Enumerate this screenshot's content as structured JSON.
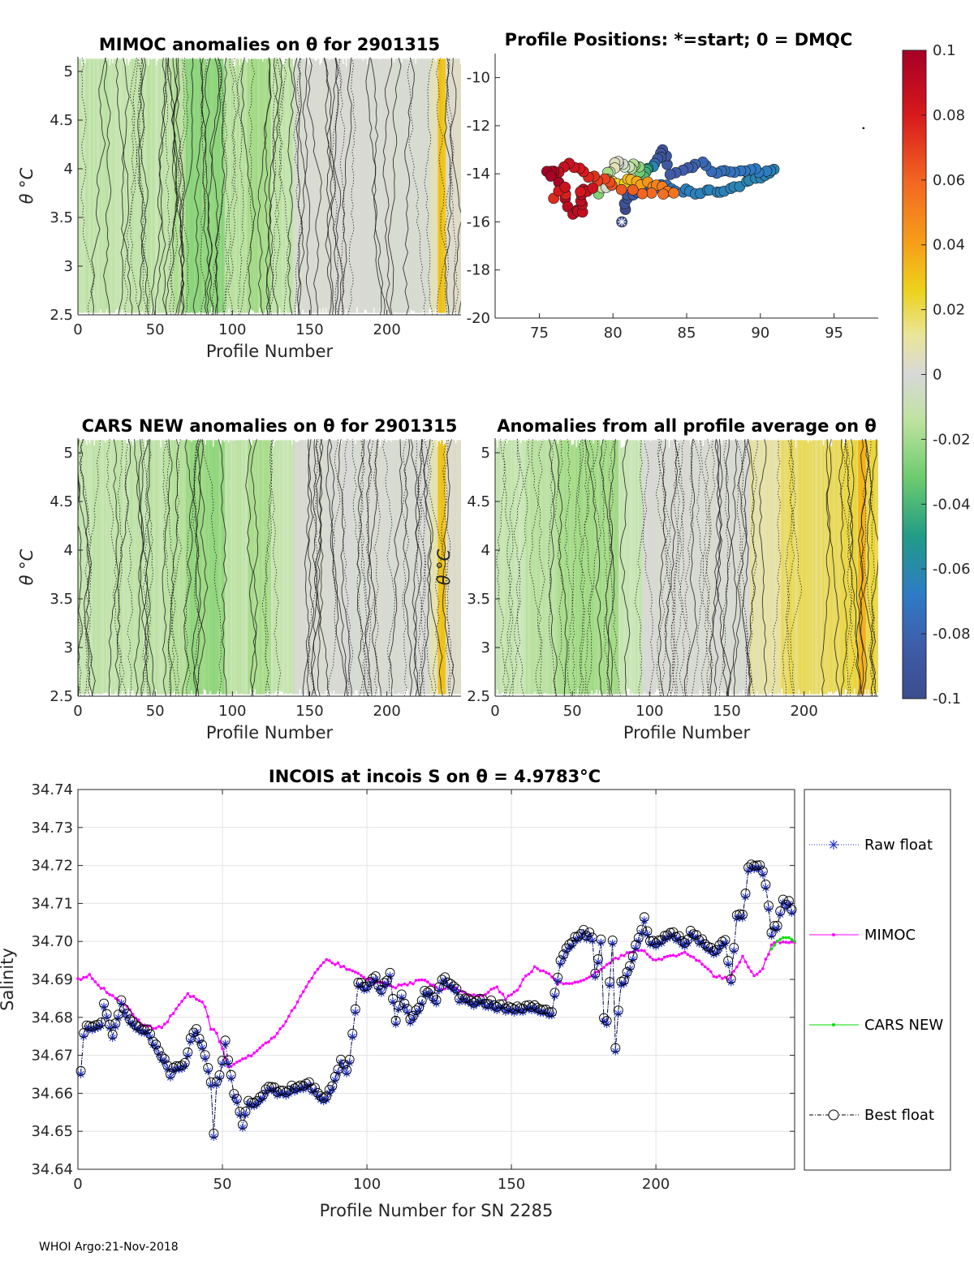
{
  "chart_data": [
    {
      "type": "heatmap",
      "id": "mimoc",
      "title": "MIMOC anomalies on θ  for 2901315",
      "xlabel": "Profile Number",
      "ylabel": "θ °C",
      "xlim": [
        0,
        248
      ],
      "ylim": [
        2.5,
        5.15
      ],
      "xticks": [
        0,
        50,
        100,
        150,
        200
      ],
      "yticks": [
        2.5,
        3,
        3.5,
        4,
        4.5,
        5
      ],
      "bands": [
        {
          "x0": 0,
          "x1": 60,
          "anomaly": -0.012
        },
        {
          "x0": 60,
          "x1": 70,
          "anomaly": -0.016
        },
        {
          "x0": 70,
          "x1": 95,
          "anomaly": -0.026
        },
        {
          "x0": 95,
          "x1": 110,
          "anomaly": -0.014
        },
        {
          "x0": 110,
          "x1": 125,
          "anomaly": -0.02
        },
        {
          "x0": 125,
          "x1": 140,
          "anomaly": -0.012
        },
        {
          "x0": 140,
          "x1": 228,
          "anomaly": 0.0
        },
        {
          "x0": 228,
          "x1": 233,
          "anomaly": 0.008
        },
        {
          "x0": 233,
          "x1": 238,
          "anomaly": 0.03
        },
        {
          "x0": 238,
          "x1": 248,
          "anomaly": 0.004
        }
      ]
    },
    {
      "type": "scatter",
      "id": "positions",
      "title": "Profile Positions: *=start; 0 = DMQC",
      "xlabel": "",
      "ylabel": "",
      "xlim": [
        72,
        98
      ],
      "ylim": [
        -20,
        -9
      ],
      "xticks": [
        75,
        80,
        85,
        90,
        95
      ],
      "yticks": [
        -20,
        -18,
        -16,
        -14,
        -12,
        -10
      ],
      "start": {
        "lon": 80.6,
        "lat": -16.0
      },
      "outlier": {
        "lon": 97.0,
        "lat": -12.1
      },
      "track": [
        {
          "lon": 80.8,
          "lat": -15.5,
          "v": -0.1
        },
        {
          "lon": 81.0,
          "lat": -14.9,
          "v": -0.09
        },
        {
          "lon": 82.0,
          "lat": -14.7,
          "v": -0.08
        },
        {
          "lon": 83.0,
          "lat": -14.5,
          "v": -0.075
        },
        {
          "lon": 84.0,
          "lat": -14.6,
          "v": -0.07
        },
        {
          "lon": 85.0,
          "lat": -14.7,
          "v": -0.068
        },
        {
          "lon": 86.0,
          "lat": -14.8,
          "v": -0.066
        },
        {
          "lon": 87.0,
          "lat": -14.7,
          "v": -0.066
        },
        {
          "lon": 88.0,
          "lat": -14.6,
          "v": -0.065
        },
        {
          "lon": 89.0,
          "lat": -14.4,
          "v": -0.064
        },
        {
          "lon": 90.0,
          "lat": -14.2,
          "v": -0.064
        },
        {
          "lon": 91.0,
          "lat": -13.9,
          "v": -0.064
        },
        {
          "lon": 90.0,
          "lat": -13.85,
          "v": -0.07
        },
        {
          "lon": 89.0,
          "lat": -13.8,
          "v": -0.072
        },
        {
          "lon": 88.0,
          "lat": -13.9,
          "v": -0.074
        },
        {
          "lon": 87.0,
          "lat": -14.0,
          "v": -0.076
        },
        {
          "lon": 86.0,
          "lat": -13.6,
          "v": -0.08
        },
        {
          "lon": 85.0,
          "lat": -13.8,
          "v": -0.084
        },
        {
          "lon": 84.0,
          "lat": -14.0,
          "v": -0.086
        },
        {
          "lon": 83.4,
          "lat": -13.0,
          "v": -0.092
        },
        {
          "lon": 83.0,
          "lat": -13.4,
          "v": -0.09
        },
        {
          "lon": 82.5,
          "lat": -13.8,
          "v": -0.05
        },
        {
          "lon": 82.0,
          "lat": -14.1,
          "v": -0.04
        },
        {
          "lon": 81.5,
          "lat": -13.6,
          "v": -0.02
        },
        {
          "lon": 81.0,
          "lat": -13.8,
          "v": -0.01
        },
        {
          "lon": 80.5,
          "lat": -13.5,
          "v": 0.0
        },
        {
          "lon": 80.0,
          "lat": -13.7,
          "v": 0.01
        },
        {
          "lon": 79.5,
          "lat": -14.2,
          "v": -0.035
        },
        {
          "lon": 79.0,
          "lat": -14.8,
          "v": -0.03
        },
        {
          "lon": 80.0,
          "lat": -14.4,
          "v": 0.02
        },
        {
          "lon": 81.0,
          "lat": -14.3,
          "v": 0.03
        },
        {
          "lon": 82.0,
          "lat": -14.4,
          "v": 0.04
        },
        {
          "lon": 83.0,
          "lat": -14.5,
          "v": 0.05
        },
        {
          "lon": 84.0,
          "lat": -14.7,
          "v": 0.055
        },
        {
          "lon": 82.0,
          "lat": -14.9,
          "v": 0.06
        },
        {
          "lon": 80.0,
          "lat": -14.5,
          "v": 0.065
        },
        {
          "lon": 79.0,
          "lat": -14.2,
          "v": 0.07
        },
        {
          "lon": 78.0,
          "lat": -14.0,
          "v": 0.08
        },
        {
          "lon": 77.0,
          "lat": -13.6,
          "v": 0.085
        },
        {
          "lon": 76.0,
          "lat": -14.0,
          "v": 0.09
        },
        {
          "lon": 75.6,
          "lat": -13.9,
          "v": 0.1
        },
        {
          "lon": 76.5,
          "lat": -14.6,
          "v": 0.095
        },
        {
          "lon": 77.2,
          "lat": -15.6,
          "v": 0.09
        },
        {
          "lon": 78.0,
          "lat": -15.5,
          "v": 0.088
        },
        {
          "lon": 77.8,
          "lat": -14.8,
          "v": 0.09
        },
        {
          "lon": 78.5,
          "lat": -14.6,
          "v": 0.085
        },
        {
          "lon": 76.0,
          "lat": -15.0,
          "v": 0.075
        },
        {
          "lon": 77.0,
          "lat": -14.3,
          "v": 0.09
        }
      ]
    },
    {
      "type": "heatmap",
      "id": "cars",
      "title": "CARS NEW anomalies on θ for 2901315",
      "xlabel": "Profile Number",
      "ylabel": "θ °C",
      "xlim": [
        0,
        248
      ],
      "ylim": [
        2.5,
        5.15
      ],
      "xticks": [
        0,
        50,
        100,
        150,
        200
      ],
      "yticks": [
        2.5,
        3,
        3.5,
        4,
        4.5,
        5
      ],
      "bands": [
        {
          "x0": 0,
          "x1": 60,
          "anomaly": -0.012
        },
        {
          "x0": 60,
          "x1": 70,
          "anomaly": -0.016
        },
        {
          "x0": 70,
          "x1": 95,
          "anomaly": -0.024
        },
        {
          "x0": 95,
          "x1": 110,
          "anomaly": -0.012
        },
        {
          "x0": 110,
          "x1": 125,
          "anomaly": -0.018
        },
        {
          "x0": 125,
          "x1": 140,
          "anomaly": -0.01
        },
        {
          "x0": 140,
          "x1": 228,
          "anomaly": 0.0
        },
        {
          "x0": 228,
          "x1": 233,
          "anomaly": 0.01
        },
        {
          "x0": 233,
          "x1": 238,
          "anomaly": 0.03
        },
        {
          "x0": 238,
          "x1": 248,
          "anomaly": 0.004
        }
      ]
    },
    {
      "type": "heatmap",
      "id": "allavg",
      "title": "Anomalies from all profile average on θ",
      "xlabel": "Profile Number",
      "ylabel": "θ °C",
      "xlim": [
        0,
        248
      ],
      "ylim": [
        2.5,
        5.15
      ],
      "xticks": [
        0,
        50,
        100,
        150,
        200
      ],
      "yticks": [
        2.5,
        3,
        3.5,
        4,
        4.5,
        5
      ],
      "bands": [
        {
          "x0": 0,
          "x1": 20,
          "anomaly": -0.01
        },
        {
          "x0": 20,
          "x1": 40,
          "anomaly": -0.014
        },
        {
          "x0": 40,
          "x1": 80,
          "anomaly": -0.02
        },
        {
          "x0": 80,
          "x1": 95,
          "anomaly": -0.01
        },
        {
          "x0": 95,
          "x1": 165,
          "anomaly": 0.0
        },
        {
          "x0": 165,
          "x1": 185,
          "anomaly": 0.012
        },
        {
          "x0": 185,
          "x1": 225,
          "anomaly": 0.018
        },
        {
          "x0": 225,
          "x1": 235,
          "anomaly": 0.02
        },
        {
          "x0": 235,
          "x1": 240,
          "anomaly": 0.035
        },
        {
          "x0": 240,
          "x1": 248,
          "anomaly": 0.02
        }
      ]
    },
    {
      "type": "line",
      "id": "incois",
      "title": "INCOIS at incois S on θ = 4.9783°C",
      "xlabel": "Profile Number for SN 2285",
      "ylabel": "Salinity",
      "xlim": [
        0,
        248
      ],
      "ylim": [
        34.64,
        34.74
      ],
      "xticks": [
        0,
        50,
        100,
        150,
        200
      ],
      "yticks": [
        34.64,
        34.65,
        34.66,
        34.67,
        34.68,
        34.69,
        34.7,
        34.71,
        34.72,
        34.73,
        34.74
      ],
      "legend": [
        "Raw float",
        "MIMOC",
        "CARS NEW",
        "Best float"
      ],
      "raw_float_anchors": [
        [
          1,
          34.665
        ],
        [
          2,
          34.676
        ],
        [
          4,
          34.678
        ],
        [
          6,
          34.677
        ],
        [
          8,
          34.678
        ],
        [
          9,
          34.683
        ],
        [
          12,
          34.675
        ],
        [
          15,
          34.684
        ],
        [
          17,
          34.68
        ],
        [
          20,
          34.677
        ],
        [
          24,
          34.676
        ],
        [
          28,
          34.671
        ],
        [
          32,
          34.665
        ],
        [
          35,
          34.667
        ],
        [
          37,
          34.667
        ],
        [
          39,
          34.674
        ],
        [
          41,
          34.677
        ],
        [
          44,
          34.67
        ],
        [
          46,
          34.663
        ],
        [
          47,
          34.649
        ],
        [
          48,
          34.662
        ],
        [
          50,
          34.668
        ],
        [
          51,
          34.673
        ],
        [
          54,
          34.66
        ],
        [
          56,
          34.655
        ],
        [
          57,
          34.651
        ],
        [
          59,
          34.658
        ],
        [
          62,
          34.657
        ],
        [
          66,
          34.662
        ],
        [
          70,
          34.66
        ],
        [
          74,
          34.661
        ],
        [
          78,
          34.661
        ],
        [
          80,
          34.662
        ],
        [
          83,
          34.66
        ],
        [
          85,
          34.658
        ],
        [
          88,
          34.662
        ],
        [
          91,
          34.668
        ],
        [
          93,
          34.665
        ],
        [
          94,
          34.668
        ],
        [
          95,
          34.676
        ],
        [
          96,
          34.682
        ],
        [
          97,
          34.689
        ],
        [
          100,
          34.688
        ],
        [
          103,
          34.69
        ],
        [
          105,
          34.687
        ],
        [
          108,
          34.691
        ],
        [
          110,
          34.679
        ],
        [
          112,
          34.686
        ],
        [
          115,
          34.679
        ],
        [
          118,
          34.682
        ],
        [
          120,
          34.687
        ],
        [
          122,
          34.686
        ],
        [
          124,
          34.684
        ],
        [
          126,
          34.69
        ],
        [
          130,
          34.688
        ],
        [
          132,
          34.685
        ],
        [
          136,
          34.684
        ],
        [
          140,
          34.684
        ],
        [
          145,
          34.683
        ],
        [
          150,
          34.682
        ],
        [
          155,
          34.682
        ],
        [
          158,
          34.683
        ],
        [
          160,
          34.681
        ],
        [
          164,
          34.681
        ],
        [
          165,
          34.686
        ],
        [
          167,
          34.695
        ],
        [
          169,
          34.698
        ],
        [
          172,
          34.701
        ],
        [
          175,
          34.702
        ],
        [
          178,
          34.701
        ],
        [
          179,
          34.691
        ],
        [
          181,
          34.7
        ],
        [
          182,
          34.68
        ],
        [
          183,
          34.678
        ],
        [
          185,
          34.7
        ],
        [
          186,
          34.671
        ],
        [
          187,
          34.682
        ],
        [
          188,
          34.689
        ],
        [
          190,
          34.691
        ],
        [
          192,
          34.696
        ],
        [
          194,
          34.7
        ],
        [
          196,
          34.706
        ],
        [
          198,
          34.699
        ],
        [
          202,
          34.7
        ],
        [
          206,
          34.702
        ],
        [
          210,
          34.699
        ],
        [
          212,
          34.702
        ],
        [
          216,
          34.7
        ],
        [
          220,
          34.697
        ],
        [
          224,
          34.7
        ],
        [
          226,
          34.689
        ],
        [
          228,
          34.707
        ],
        [
          230,
          34.706
        ],
        [
          232,
          34.719
        ],
        [
          234,
          34.72
        ],
        [
          236,
          34.72
        ],
        [
          238,
          34.715
        ],
        [
          240,
          34.702
        ],
        [
          242,
          34.704
        ],
        [
          244,
          34.71
        ],
        [
          246,
          34.71
        ],
        [
          248,
          34.705
        ]
      ],
      "mimoc_anchors": [
        [
          0,
          34.69
        ],
        [
          4,
          34.691
        ],
        [
          8,
          34.688
        ],
        [
          13,
          34.685
        ],
        [
          17,
          34.683
        ],
        [
          22,
          34.678
        ],
        [
          27,
          34.677
        ],
        [
          30,
          34.678
        ],
        [
          33,
          34.681
        ],
        [
          38,
          34.686
        ],
        [
          41,
          34.685
        ],
        [
          44,
          34.683
        ],
        [
          46,
          34.677
        ],
        [
          48,
          34.676
        ],
        [
          52,
          34.667
        ],
        [
          57,
          34.669
        ],
        [
          62,
          34.671
        ],
        [
          68,
          34.675
        ],
        [
          72,
          34.679
        ],
        [
          76,
          34.684
        ],
        [
          79,
          34.688
        ],
        [
          82,
          34.692
        ],
        [
          86,
          34.695
        ],
        [
          90,
          34.694
        ],
        [
          95,
          34.692
        ],
        [
          100,
          34.69
        ],
        [
          105,
          34.689
        ],
        [
          110,
          34.688
        ],
        [
          115,
          34.689
        ],
        [
          120,
          34.69
        ],
        [
          125,
          34.687
        ],
        [
          130,
          34.688
        ],
        [
          135,
          34.686
        ],
        [
          140,
          34.686
        ],
        [
          145,
          34.688
        ],
        [
          148,
          34.685
        ],
        [
          152,
          34.687
        ],
        [
          155,
          34.691
        ],
        [
          158,
          34.693
        ],
        [
          162,
          34.692
        ],
        [
          166,
          34.689
        ],
        [
          170,
          34.689
        ],
        [
          175,
          34.69
        ],
        [
          180,
          34.692
        ],
        [
          185,
          34.695
        ],
        [
          190,
          34.697
        ],
        [
          195,
          34.698
        ],
        [
          200,
          34.695
        ],
        [
          205,
          34.696
        ],
        [
          210,
          34.697
        ],
        [
          215,
          34.695
        ],
        [
          220,
          34.691
        ],
        [
          225,
          34.69
        ],
        [
          230,
          34.696
        ],
        [
          234,
          34.691
        ],
        [
          237,
          34.693
        ],
        [
          240,
          34.699
        ],
        [
          243,
          34.7
        ],
        [
          246,
          34.7
        ],
        [
          248,
          34.7
        ]
      ],
      "cars_anchors": [
        [
          240,
          34.698
        ],
        [
          242,
          34.7
        ],
        [
          244,
          34.701
        ],
        [
          246,
          34.701
        ],
        [
          248,
          34.7
        ]
      ]
    }
  ],
  "colorbar": {
    "min": -0.1,
    "max": 0.1,
    "tick_labels": [
      "0.1",
      "0.08",
      "0.06",
      "0.04",
      "0.02",
      "0",
      "-0.02",
      "-0.04",
      "-0.06",
      "-0.08",
      "-0.1"
    ]
  },
  "footer": "WHOI Argo:21-Nov-2018"
}
